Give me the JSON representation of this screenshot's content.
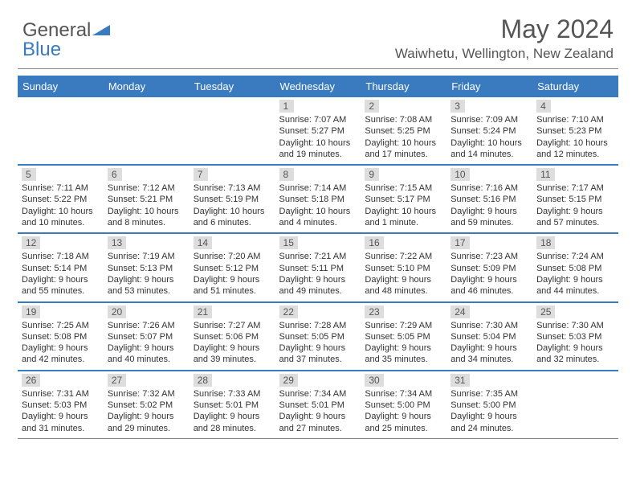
{
  "brand": {
    "general": "General",
    "blue": "Blue"
  },
  "title": "May 2024",
  "location": "Waiwhetu, Wellington, New Zealand",
  "colors": {
    "accent": "#3a7bbf",
    "header_text": "#555555",
    "daynum_bg": "#dddddd",
    "body_text": "#333333"
  },
  "day_headers": [
    "Sunday",
    "Monday",
    "Tuesday",
    "Wednesday",
    "Thursday",
    "Friday",
    "Saturday"
  ],
  "weeks": [
    [
      null,
      null,
      null,
      {
        "n": "1",
        "sr": "Sunrise: 7:07 AM",
        "ss": "Sunset: 5:27 PM",
        "dl1": "Daylight: 10 hours",
        "dl2": "and 19 minutes."
      },
      {
        "n": "2",
        "sr": "Sunrise: 7:08 AM",
        "ss": "Sunset: 5:25 PM",
        "dl1": "Daylight: 10 hours",
        "dl2": "and 17 minutes."
      },
      {
        "n": "3",
        "sr": "Sunrise: 7:09 AM",
        "ss": "Sunset: 5:24 PM",
        "dl1": "Daylight: 10 hours",
        "dl2": "and 14 minutes."
      },
      {
        "n": "4",
        "sr": "Sunrise: 7:10 AM",
        "ss": "Sunset: 5:23 PM",
        "dl1": "Daylight: 10 hours",
        "dl2": "and 12 minutes."
      }
    ],
    [
      {
        "n": "5",
        "sr": "Sunrise: 7:11 AM",
        "ss": "Sunset: 5:22 PM",
        "dl1": "Daylight: 10 hours",
        "dl2": "and 10 minutes."
      },
      {
        "n": "6",
        "sr": "Sunrise: 7:12 AM",
        "ss": "Sunset: 5:21 PM",
        "dl1": "Daylight: 10 hours",
        "dl2": "and 8 minutes."
      },
      {
        "n": "7",
        "sr": "Sunrise: 7:13 AM",
        "ss": "Sunset: 5:19 PM",
        "dl1": "Daylight: 10 hours",
        "dl2": "and 6 minutes."
      },
      {
        "n": "8",
        "sr": "Sunrise: 7:14 AM",
        "ss": "Sunset: 5:18 PM",
        "dl1": "Daylight: 10 hours",
        "dl2": "and 4 minutes."
      },
      {
        "n": "9",
        "sr": "Sunrise: 7:15 AM",
        "ss": "Sunset: 5:17 PM",
        "dl1": "Daylight: 10 hours",
        "dl2": "and 1 minute."
      },
      {
        "n": "10",
        "sr": "Sunrise: 7:16 AM",
        "ss": "Sunset: 5:16 PM",
        "dl1": "Daylight: 9 hours",
        "dl2": "and 59 minutes."
      },
      {
        "n": "11",
        "sr": "Sunrise: 7:17 AM",
        "ss": "Sunset: 5:15 PM",
        "dl1": "Daylight: 9 hours",
        "dl2": "and 57 minutes."
      }
    ],
    [
      {
        "n": "12",
        "sr": "Sunrise: 7:18 AM",
        "ss": "Sunset: 5:14 PM",
        "dl1": "Daylight: 9 hours",
        "dl2": "and 55 minutes."
      },
      {
        "n": "13",
        "sr": "Sunrise: 7:19 AM",
        "ss": "Sunset: 5:13 PM",
        "dl1": "Daylight: 9 hours",
        "dl2": "and 53 minutes."
      },
      {
        "n": "14",
        "sr": "Sunrise: 7:20 AM",
        "ss": "Sunset: 5:12 PM",
        "dl1": "Daylight: 9 hours",
        "dl2": "and 51 minutes."
      },
      {
        "n": "15",
        "sr": "Sunrise: 7:21 AM",
        "ss": "Sunset: 5:11 PM",
        "dl1": "Daylight: 9 hours",
        "dl2": "and 49 minutes."
      },
      {
        "n": "16",
        "sr": "Sunrise: 7:22 AM",
        "ss": "Sunset: 5:10 PM",
        "dl1": "Daylight: 9 hours",
        "dl2": "and 48 minutes."
      },
      {
        "n": "17",
        "sr": "Sunrise: 7:23 AM",
        "ss": "Sunset: 5:09 PM",
        "dl1": "Daylight: 9 hours",
        "dl2": "and 46 minutes."
      },
      {
        "n": "18",
        "sr": "Sunrise: 7:24 AM",
        "ss": "Sunset: 5:08 PM",
        "dl1": "Daylight: 9 hours",
        "dl2": "and 44 minutes."
      }
    ],
    [
      {
        "n": "19",
        "sr": "Sunrise: 7:25 AM",
        "ss": "Sunset: 5:08 PM",
        "dl1": "Daylight: 9 hours",
        "dl2": "and 42 minutes."
      },
      {
        "n": "20",
        "sr": "Sunrise: 7:26 AM",
        "ss": "Sunset: 5:07 PM",
        "dl1": "Daylight: 9 hours",
        "dl2": "and 40 minutes."
      },
      {
        "n": "21",
        "sr": "Sunrise: 7:27 AM",
        "ss": "Sunset: 5:06 PM",
        "dl1": "Daylight: 9 hours",
        "dl2": "and 39 minutes."
      },
      {
        "n": "22",
        "sr": "Sunrise: 7:28 AM",
        "ss": "Sunset: 5:05 PM",
        "dl1": "Daylight: 9 hours",
        "dl2": "and 37 minutes."
      },
      {
        "n": "23",
        "sr": "Sunrise: 7:29 AM",
        "ss": "Sunset: 5:05 PM",
        "dl1": "Daylight: 9 hours",
        "dl2": "and 35 minutes."
      },
      {
        "n": "24",
        "sr": "Sunrise: 7:30 AM",
        "ss": "Sunset: 5:04 PM",
        "dl1": "Daylight: 9 hours",
        "dl2": "and 34 minutes."
      },
      {
        "n": "25",
        "sr": "Sunrise: 7:30 AM",
        "ss": "Sunset: 5:03 PM",
        "dl1": "Daylight: 9 hours",
        "dl2": "and 32 minutes."
      }
    ],
    [
      {
        "n": "26",
        "sr": "Sunrise: 7:31 AM",
        "ss": "Sunset: 5:03 PM",
        "dl1": "Daylight: 9 hours",
        "dl2": "and 31 minutes."
      },
      {
        "n": "27",
        "sr": "Sunrise: 7:32 AM",
        "ss": "Sunset: 5:02 PM",
        "dl1": "Daylight: 9 hours",
        "dl2": "and 29 minutes."
      },
      {
        "n": "28",
        "sr": "Sunrise: 7:33 AM",
        "ss": "Sunset: 5:01 PM",
        "dl1": "Daylight: 9 hours",
        "dl2": "and 28 minutes."
      },
      {
        "n": "29",
        "sr": "Sunrise: 7:34 AM",
        "ss": "Sunset: 5:01 PM",
        "dl1": "Daylight: 9 hours",
        "dl2": "and 27 minutes."
      },
      {
        "n": "30",
        "sr": "Sunrise: 7:34 AM",
        "ss": "Sunset: 5:00 PM",
        "dl1": "Daylight: 9 hours",
        "dl2": "and 25 minutes."
      },
      {
        "n": "31",
        "sr": "Sunrise: 7:35 AM",
        "ss": "Sunset: 5:00 PM",
        "dl1": "Daylight: 9 hours",
        "dl2": "and 24 minutes."
      },
      null
    ]
  ]
}
